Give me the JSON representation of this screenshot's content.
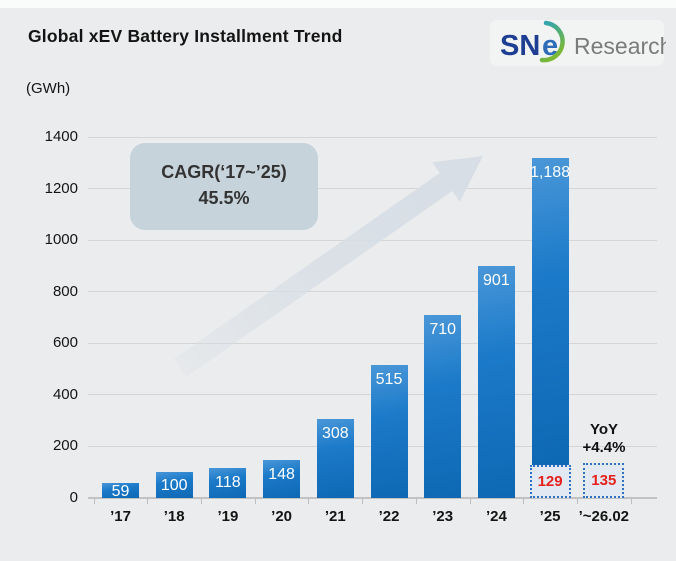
{
  "title": "Global xEV Battery Installment Trend",
  "logo": {
    "text_sn": "SN",
    "text_e": "e",
    "text_research": "Research",
    "brand_navy": "#1d3e92",
    "brand_blue": "#2d6db8",
    "brand_green": "#7cb832",
    "research_gray": "#7b7b7b"
  },
  "colors": {
    "background": "#ebeced",
    "bar_blue": "#1273c2",
    "dotted_border": "#2f72c2",
    "dotted_fill": "#e3e9f3",
    "estimate_red": "#e5201d",
    "callout_bg": "#c7d3da",
    "arrow_gray_blue": "#d7dee5",
    "gridline": "#d5d5d5"
  },
  "chart_data": {
    "type": "bar",
    "title": "Global xEV Battery Installment Trend",
    "ylabel": "(GWh)",
    "xlabel": "",
    "ylim": [
      0,
      1400
    ],
    "yticks": [
      0,
      200,
      400,
      600,
      800,
      1000,
      1200,
      1400
    ],
    "grid": true,
    "legend": "none",
    "categories": [
      "’17",
      "’18",
      "’19",
      "’20",
      "’21",
      "’22",
      "’23",
      "’24",
      "’25",
      "’~26.02"
    ],
    "bars": [
      {
        "category": "’17",
        "solid": 59,
        "solid_label": "59"
      },
      {
        "category": "’18",
        "solid": 100,
        "solid_label": "100"
      },
      {
        "category": "’19",
        "solid": 118,
        "solid_label": "118"
      },
      {
        "category": "’20",
        "solid": 148,
        "solid_label": "148"
      },
      {
        "category": "’21",
        "solid": 308,
        "solid_label": "308"
      },
      {
        "category": "’22",
        "solid": 515,
        "solid_label": "515"
      },
      {
        "category": "’23",
        "solid": 710,
        "solid_label": "710"
      },
      {
        "category": "’24",
        "solid": 901,
        "solid_label": "901"
      },
      {
        "category": "’25",
        "solid": 1188,
        "solid_label": "1,188",
        "dotted": 129,
        "dotted_label": "129"
      },
      {
        "category": "’~26.02",
        "dotted": 135,
        "dotted_label": "135"
      }
    ],
    "annotations": {
      "cagr_line1": "CAGR(‘17~’25)",
      "cagr_line2": "45.5%",
      "yoy_line1": "YoY",
      "yoy_line2": "+4.4%"
    }
  }
}
